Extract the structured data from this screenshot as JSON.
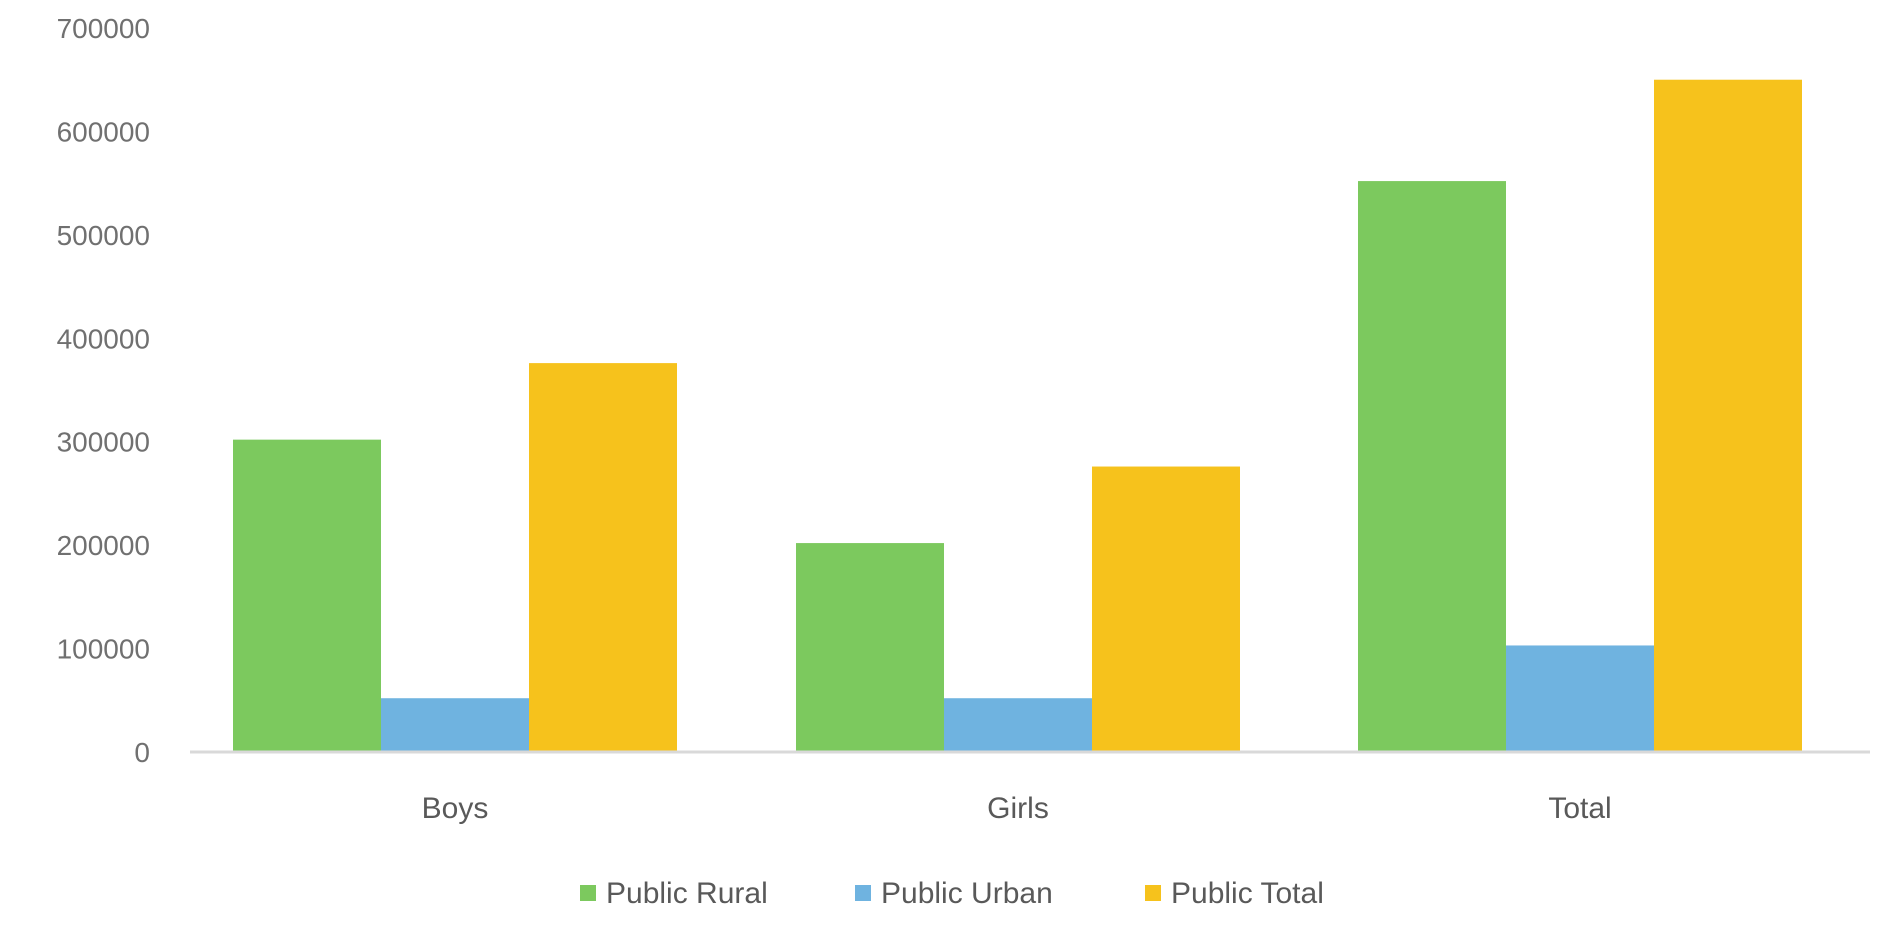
{
  "chart_data": {
    "type": "bar",
    "categories": [
      "Boys",
      "Girls",
      "Total"
    ],
    "series": [
      {
        "name": "Public Rural",
        "values": [
          302000,
          202000,
          552000
        ],
        "color": "#7CC95E"
      },
      {
        "name": "Public Urban",
        "values": [
          52000,
          52000,
          103000
        ],
        "color": "#6FB3E0"
      },
      {
        "name": "Public Total",
        "values": [
          376000,
          276000,
          650000
        ],
        "color": "#F6C21C"
      }
    ],
    "y_ticks": [
      "0",
      "100000",
      "200000",
      "300000",
      "400000",
      "500000",
      "600000",
      "700000"
    ],
    "ylim": [
      0,
      700000
    ],
    "grid": false,
    "legend_position": "bottom-center",
    "axis_color": "#D9D9D9"
  }
}
